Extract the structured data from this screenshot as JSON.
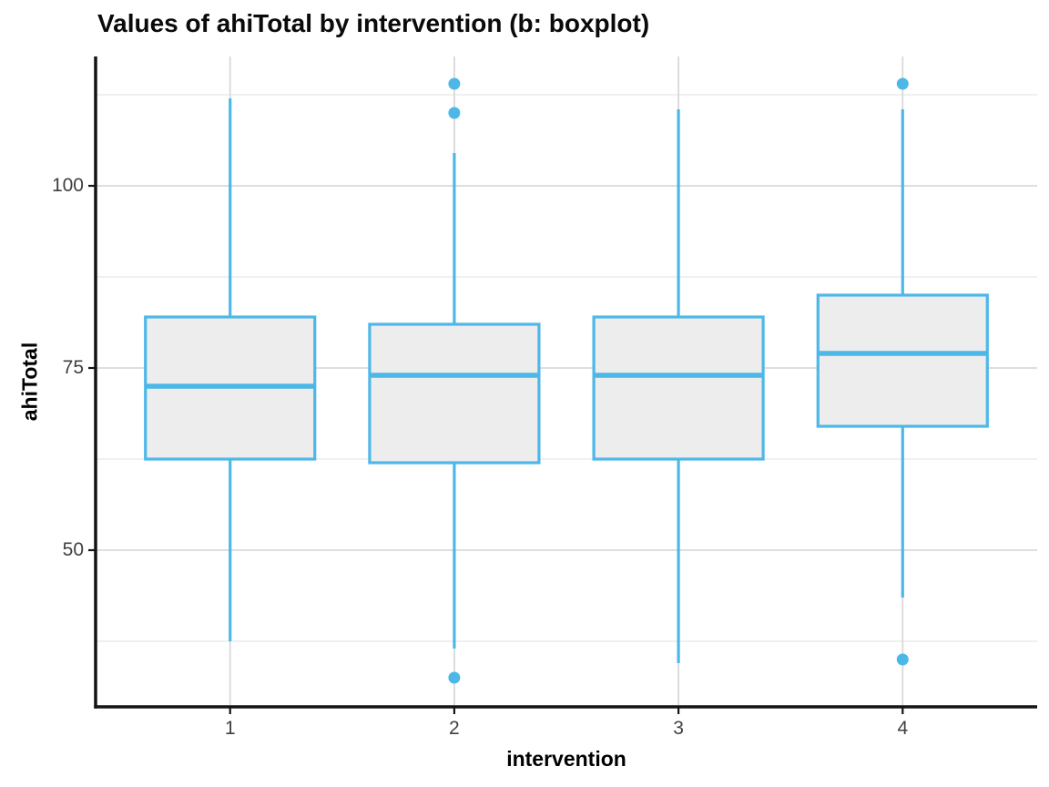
{
  "title": "Values of ahiTotal by intervention (b: boxplot)",
  "chart_data": {
    "type": "boxplot",
    "title": "Values of ahiTotal by intervention (b: boxplot)",
    "xlabel": "intervention",
    "ylabel": "ahiTotal",
    "categories": [
      "1",
      "2",
      "3",
      "4"
    ],
    "ylim": [
      28.5,
      117.75
    ],
    "y_major_ticks": [
      50,
      75,
      100
    ],
    "y_minor_gridlines": [
      37.5,
      62.5,
      87.5,
      112.5
    ],
    "legend_position": "none",
    "grid": true,
    "boxes": [
      {
        "category": "1",
        "whisker_low": 37.5,
        "q1": 62.5,
        "median": 72.5,
        "q3": 82,
        "whisker_high": 112,
        "outliers": []
      },
      {
        "category": "2",
        "whisker_low": 36.5,
        "q1": 62,
        "median": 74,
        "q3": 81,
        "whisker_high": 104.5,
        "outliers": [
          114,
          110,
          32.5
        ]
      },
      {
        "category": "3",
        "whisker_low": 34.5,
        "q1": 62.5,
        "median": 74,
        "q3": 82,
        "whisker_high": 110.5,
        "outliers": []
      },
      {
        "category": "4",
        "whisker_low": 43.5,
        "q1": 67,
        "median": 77,
        "q3": 85,
        "whisker_high": 110.5,
        "outliers": [
          114,
          35
        ]
      }
    ],
    "colors": {
      "box_stroke": "#4DB8E8",
      "box_fill": "#EDEDED",
      "outlier": "#4DB8E8",
      "grid_major": "#D9D9D9",
      "grid_minor": "#EBEBEB",
      "axis": "#141414",
      "tick_label": "#404040",
      "title_text": "#0a0a0a"
    }
  }
}
